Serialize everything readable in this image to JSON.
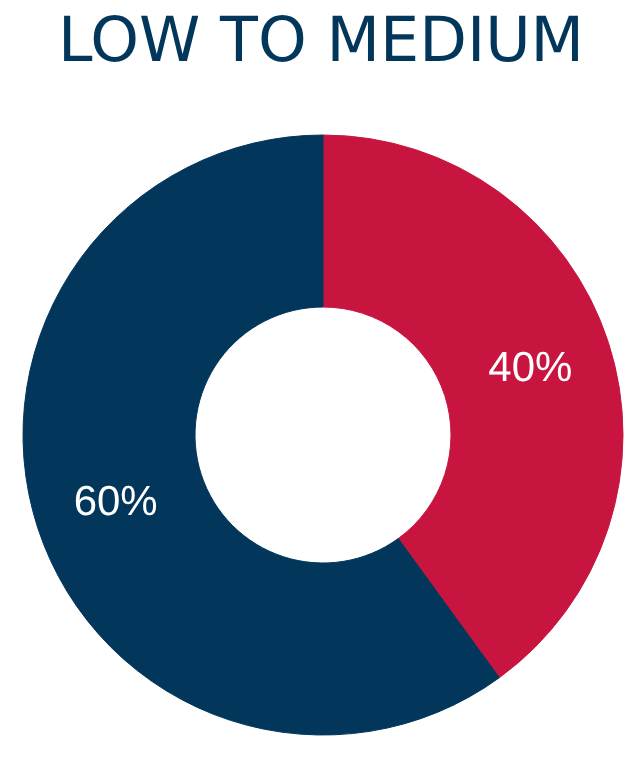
{
  "chart_data": {
    "type": "donut",
    "title": "LOW TO MEDIUM",
    "categories": [
      null,
      null
    ],
    "values": [
      40,
      60
    ],
    "colors": [
      "#c8153f",
      "#02365a"
    ],
    "value_labels": [
      "40%",
      "60%"
    ]
  }
}
